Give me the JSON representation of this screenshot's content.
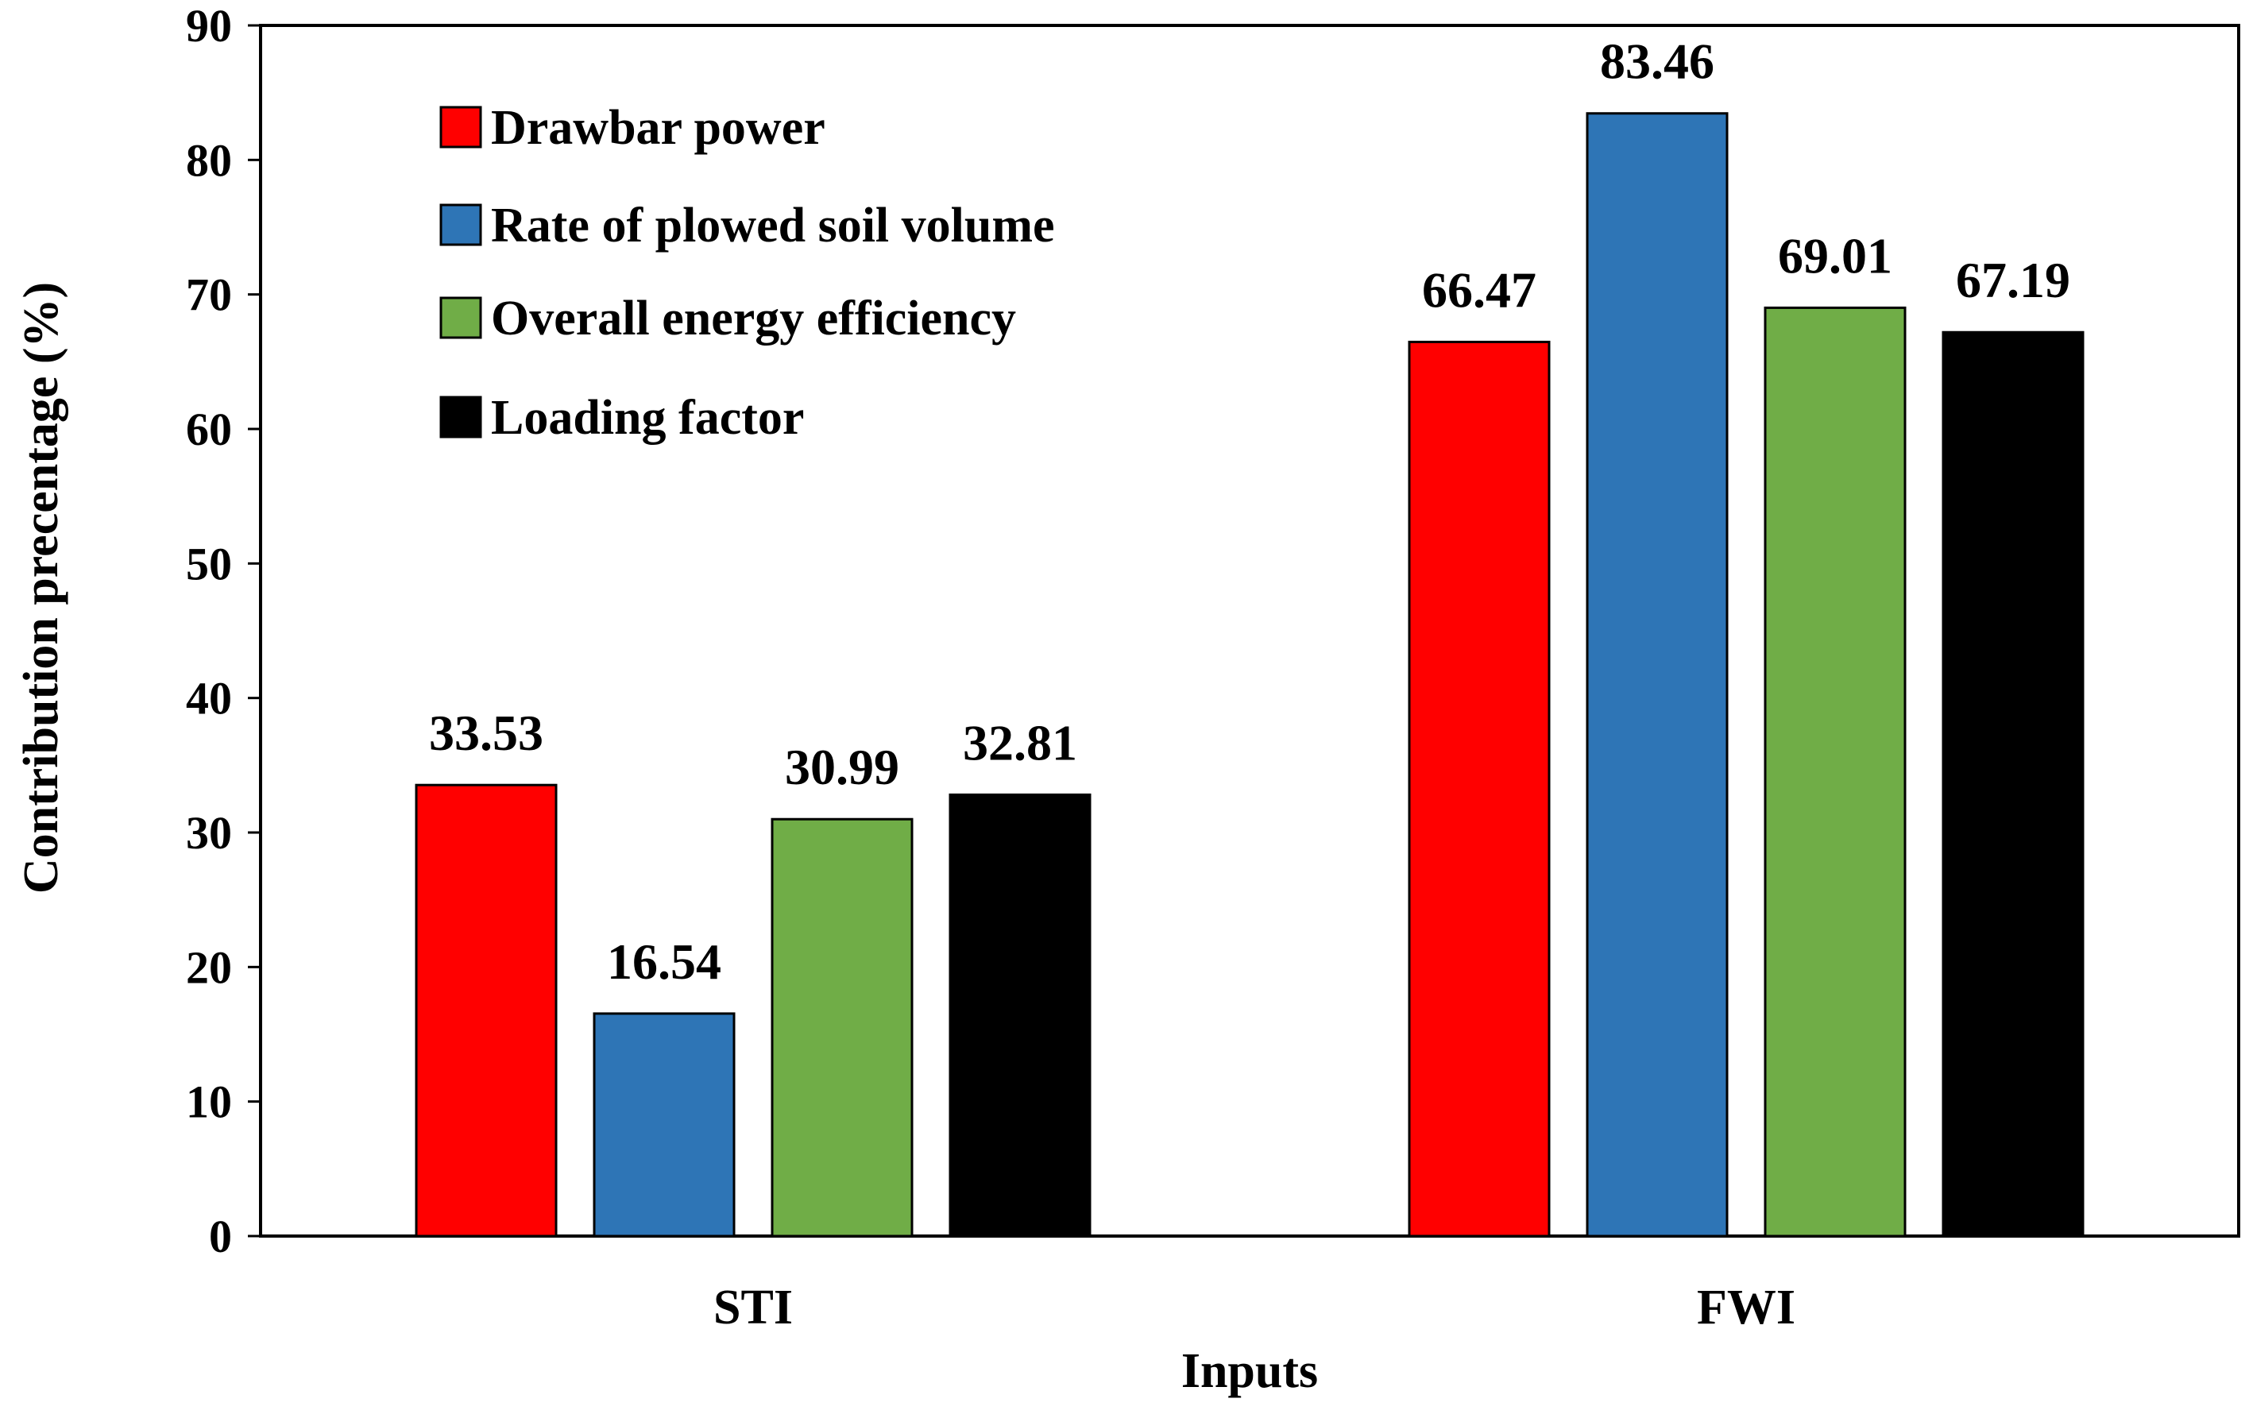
{
  "chart_data": {
    "type": "bar",
    "title": "",
    "xlabel": "Inputs",
    "ylabel": "Contribution  precentage  (%)",
    "categories": [
      "STI",
      "FWI"
    ],
    "ylim": [
      0,
      90
    ],
    "yticks": [
      0,
      10,
      20,
      30,
      40,
      50,
      60,
      70,
      80,
      90
    ],
    "grid": false,
    "legend_position": "top-left",
    "series": [
      {
        "name": "Drawbar power",
        "color": "#ff0000",
        "values": [
          33.53,
          66.47
        ],
        "labels": [
          "33.53",
          "66.47"
        ]
      },
      {
        "name": "Rate of plowed soil volume",
        "color": "#2e75b6",
        "values": [
          16.54,
          83.46
        ],
        "labels": [
          "16.54",
          "83.46"
        ]
      },
      {
        "name": "Overall energy efficiency",
        "color": "#70ad47",
        "values": [
          30.99,
          69.01
        ],
        "labels": [
          "30.99",
          "69.01"
        ]
      },
      {
        "name": "Loading factor",
        "color": "#000000",
        "values": [
          32.81,
          67.19
        ],
        "labels": [
          "32.81",
          "67.19"
        ]
      }
    ]
  }
}
